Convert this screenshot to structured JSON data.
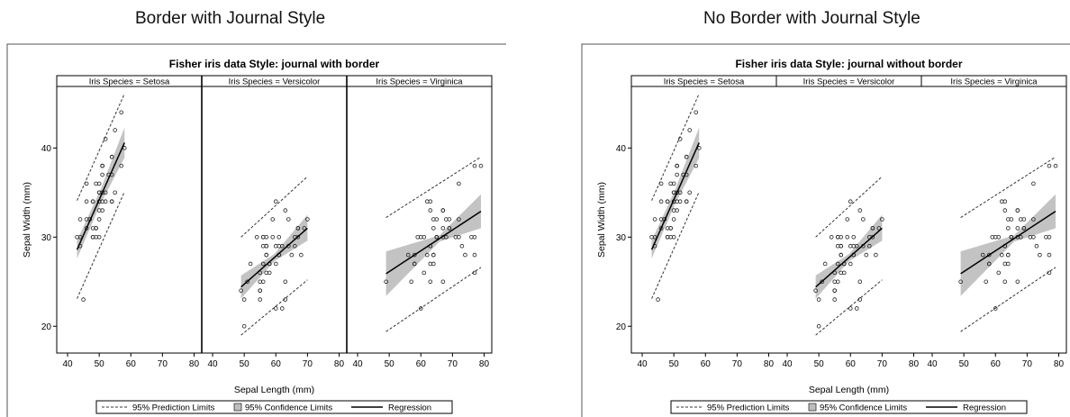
{
  "captions": [
    "Border with Journal Style",
    "No Border with Journal Style"
  ],
  "chart_data": [
    {
      "type": "scatter",
      "title": "Fisher iris data Style: journal with border",
      "panel_border": true,
      "panels": [
        "Iris Species = Setosa",
        "Iris Species = Versicolor",
        "Iris Species = Virginica"
      ],
      "xlabel": "Sepal Length (mm)",
      "ylabel": "Sepal Width (mm)",
      "xlim": [
        38,
        81
      ],
      "ylim": [
        17.5,
        46.5
      ],
      "xticks": [
        40,
        50,
        60,
        70,
        80
      ],
      "yticks": [
        20,
        30,
        40
      ],
      "legend": [
        "95% Prediction Limits",
        "95% Confidence Limits",
        "Regression"
      ],
      "legend_position": "bottom",
      "series": [
        {
          "species": "Setosa",
          "points": [
            [
              43,
              30
            ],
            [
              44,
              29
            ],
            [
              44,
              30
            ],
            [
              44,
              32
            ],
            [
              45,
              23
            ],
            [
              46,
              31
            ],
            [
              46,
              32
            ],
            [
              46,
              34
            ],
            [
              46,
              36
            ],
            [
              47,
              32
            ],
            [
              47,
              32
            ],
            [
              48,
              30
            ],
            [
              48,
              30
            ],
            [
              48,
              31
            ],
            [
              48,
              34
            ],
            [
              48,
              34
            ],
            [
              49,
              30
            ],
            [
              49,
              31
            ],
            [
              49,
              31
            ],
            [
              49,
              36
            ],
            [
              50,
              30
            ],
            [
              50,
              32
            ],
            [
              50,
              33
            ],
            [
              50,
              34
            ],
            [
              50,
              34
            ],
            [
              50,
              35
            ],
            [
              50,
              35
            ],
            [
              50,
              36
            ],
            [
              51,
              33
            ],
            [
              51,
              34
            ],
            [
              51,
              35
            ],
            [
              51,
              35
            ],
            [
              51,
              37
            ],
            [
              51,
              38
            ],
            [
              51,
              38
            ],
            [
              51,
              38
            ],
            [
              52,
              34
            ],
            [
              52,
              35
            ],
            [
              52,
              41
            ],
            [
              53,
              37
            ],
            [
              54,
              34
            ],
            [
              54,
              34
            ],
            [
              54,
              37
            ],
            [
              54,
              39
            ],
            [
              54,
              39
            ],
            [
              55,
              35
            ],
            [
              55,
              42
            ],
            [
              57,
              38
            ],
            [
              57,
              44
            ],
            [
              58,
              40
            ]
          ],
          "fit": [
            [
              43,
              28.6
            ],
            [
              58,
              40.6
            ]
          ],
          "ci": [
            [
              43,
              27.6,
              29.6
            ],
            [
              50.5,
              33.8,
              35.4
            ],
            [
              58,
              38.9,
              42.3
            ]
          ],
          "pi": [
            [
              43,
              23.1,
              34.1
            ],
            [
              58,
              35.1,
              46.1
            ]
          ]
        },
        {
          "species": "Versicolor",
          "points": [
            [
              49,
              24
            ],
            [
              50,
              20
            ],
            [
              50,
              23
            ],
            [
              51,
              25
            ],
            [
              52,
              27
            ],
            [
              54,
              30
            ],
            [
              55,
              23
            ],
            [
              55,
              24
            ],
            [
              55,
              24
            ],
            [
              55,
              25
            ],
            [
              55,
              26
            ],
            [
              56,
              25
            ],
            [
              56,
              27
            ],
            [
              56,
              29
            ],
            [
              56,
              30
            ],
            [
              56,
              30
            ],
            [
              57,
              26
            ],
            [
              57,
              28
            ],
            [
              57,
              28
            ],
            [
              57,
              29
            ],
            [
              57,
              29
            ],
            [
              57,
              30
            ],
            [
              58,
              26
            ],
            [
              58,
              27
            ],
            [
              58,
              27
            ],
            [
              59,
              30
            ],
            [
              59,
              32
            ],
            [
              60,
              22
            ],
            [
              60,
              27
            ],
            [
              60,
              29
            ],
            [
              60,
              34
            ],
            [
              61,
              28
            ],
            [
              61,
              28
            ],
            [
              61,
              29
            ],
            [
              61,
              30
            ],
            [
              62,
              22
            ],
            [
              62,
              29
            ],
            [
              63,
              23
            ],
            [
              63,
              25
            ],
            [
              63,
              33
            ],
            [
              64,
              29
            ],
            [
              64,
              32
            ],
            [
              65,
              28
            ],
            [
              66,
              29
            ],
            [
              66,
              30
            ],
            [
              67,
              30
            ],
            [
              67,
              31
            ],
            [
              67,
              31
            ],
            [
              68,
              28
            ],
            [
              69,
              31
            ],
            [
              70,
              32
            ]
          ],
          "fit": [
            [
              49,
              24.4
            ],
            [
              70,
              31.0
            ]
          ],
          "ci": [
            [
              49,
              23.1,
              25.7
            ],
            [
              59.5,
              27.3,
              28.1
            ],
            [
              70,
              29.6,
              32.5
            ]
          ],
          "pi": [
            [
              49,
              19.0,
              30.0
            ],
            [
              70,
              25.2,
              36.8
            ]
          ]
        },
        {
          "species": "Virginica",
          "points": [
            [
              49,
              25
            ],
            [
              56,
              28
            ],
            [
              57,
              25
            ],
            [
              58,
              27
            ],
            [
              58,
              27
            ],
            [
              58,
              28
            ],
            [
              59,
              30
            ],
            [
              60,
              22
            ],
            [
              60,
              30
            ],
            [
              61,
              26
            ],
            [
              61,
              30
            ],
            [
              62,
              28
            ],
            [
              62,
              34
            ],
            [
              63,
              25
            ],
            [
              63,
              27
            ],
            [
              63,
              29
            ],
            [
              63,
              29
            ],
            [
              63,
              33
            ],
            [
              63,
              34
            ],
            [
              64,
              27
            ],
            [
              64,
              28
            ],
            [
              64,
              28
            ],
            [
              64,
              31
            ],
            [
              64,
              32
            ],
            [
              65,
              30
            ],
            [
              65,
              30
            ],
            [
              65,
              30
            ],
            [
              65,
              32
            ],
            [
              67,
              25
            ],
            [
              67,
              30
            ],
            [
              67,
              31
            ],
            [
              67,
              33
            ],
            [
              67,
              33
            ],
            [
              68,
              30
            ],
            [
              68,
              32
            ],
            [
              69,
              31
            ],
            [
              69,
              31
            ],
            [
              69,
              32
            ],
            [
              71,
              30
            ],
            [
              72,
              30
            ],
            [
              72,
              32
            ],
            [
              72,
              36
            ],
            [
              73,
              29
            ],
            [
              74,
              28
            ],
            [
              76,
              30
            ],
            [
              77,
              26
            ],
            [
              77,
              28
            ],
            [
              77,
              30
            ],
            [
              77,
              38
            ],
            [
              79,
              38
            ]
          ],
          "fit": [
            [
              49,
              25.9
            ],
            [
              79,
              32.9
            ]
          ],
          "ci": [
            [
              49,
              23.4,
              28.4
            ],
            [
              65.9,
              29.5,
              30.2
            ],
            [
              79,
              31.0,
              34.8
            ]
          ],
          "pi": [
            [
              49,
              19.4,
              32.2
            ],
            [
              79,
              26.6,
              39.0
            ]
          ]
        }
      ]
    },
    {
      "type": "scatter",
      "title": "Fisher iris data Style: journal without border",
      "panel_border": false,
      "panels": [
        "Iris Species = Setosa",
        "Iris Species = Versicolor",
        "Iris Species = Virginica"
      ],
      "xlabel": "Sepal Length (mm)",
      "ylabel": "Sepal Width (mm)",
      "xlim": [
        38,
        81
      ],
      "ylim": [
        17.5,
        46.5
      ],
      "xticks": [
        40,
        50,
        60,
        70,
        80
      ],
      "yticks": [
        20,
        30,
        40
      ],
      "legend": [
        "95% Prediction Limits",
        "95% Confidence Limits",
        "Regression"
      ],
      "legend_position": "bottom",
      "series": "same-as-first"
    }
  ]
}
